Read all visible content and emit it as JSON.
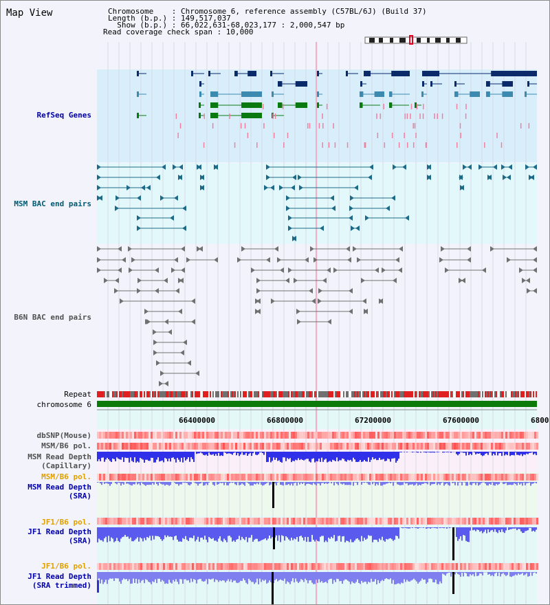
{
  "header": {
    "title": "Map View",
    "info_lines": [
      "Chromosome    : Chromosome 6, reference assembly (C57BL/6J) (Build 37)",
      "Length (b.p.) : 149,517,037",
      "  Show (b.p.) : 66,022,631-68,023,177 : 2,000,547 bp",
      "Read coverage check span : 10,000"
    ]
  },
  "tracks": {
    "refseq": "RefSeq Genes",
    "msm_bac": "MSM BAC end pairs",
    "b6n_bac": "B6N BAC end pairs",
    "repeat": "Repeat",
    "chromosome": "chromosome 6",
    "dbsnp": "dbSNP(Mouse)",
    "msm_b6_pol_1": "MSM/B6 pol.",
    "msm_depth_cap_1": "MSM Read Depth",
    "msm_depth_cap_2": "(Capillary)",
    "msm_b6_pol_2": "MSM/B6 pol.",
    "msm_depth_sra_1": "MSM Read Depth",
    "msm_depth_sra_2": "(SRA)",
    "jf1_b6_pol_1": "JF1/B6 pol.",
    "jf1_depth_sra_1": "JF1 Read Depth",
    "jf1_depth_sra_2": "(SRA)",
    "jf1_b6_pol_2": "JF1/B6 pol.",
    "jf1_depth_trim_1": "JF1 Read Depth",
    "jf1_depth_trim_2": "(SRA trimmed)"
  },
  "axis": {
    "ticks": [
      "66400000",
      "66800000",
      "67200000",
      "67600000",
      "6800"
    ]
  },
  "colors": {
    "refseq_bg": "#d8eefa",
    "bac_bg": "#e2f8fb",
    "refseq_dark": "#0a2a6a",
    "refseq_mid": "#3d8ab0",
    "refseq_green": "#0a7a10",
    "bac_teal": "#1e6a86",
    "bac_gray": "#707070",
    "repeat_red": "#e02020",
    "chrom_green": "#0b7a0b",
    "depth_blue": "#4040e0"
  }
}
